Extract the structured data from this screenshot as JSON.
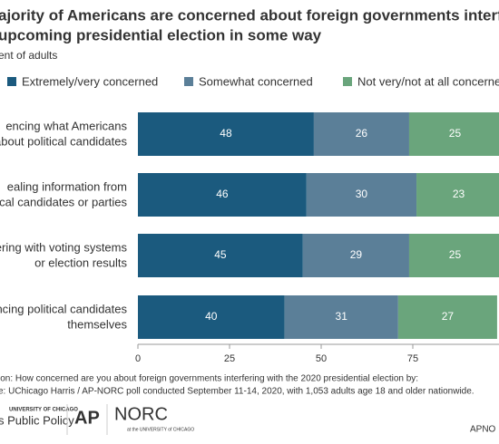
{
  "chart_data": {
    "type": "stacked-bar-horizontal",
    "title": [
      "ajority of Americans are concerned about foreign governments interfering i",
      "upcoming presidential election in some way"
    ],
    "subtitle": "ent of adults",
    "categories": [
      [
        "encing what Americans",
        "about political candidates"
      ],
      [
        "ealing information from",
        "ical candidates or parties"
      ],
      [
        "ering with voting systems",
        "or election results"
      ],
      [
        "ncing political candidates",
        "themselves"
      ]
    ],
    "series": [
      {
        "name": "Extremely/very concerned",
        "color": "#1b5a7e",
        "values": [
          48,
          46,
          45,
          40
        ]
      },
      {
        "name": "Somewhat concerned",
        "color": "#5b7f98",
        "values": [
          26,
          30,
          29,
          31
        ]
      },
      {
        "name": "Not very/not at all concerned",
        "color": "#6aa57c",
        "values": [
          25,
          23,
          25,
          27
        ]
      }
    ],
    "xlim": [
      0,
      100
    ],
    "xticks": [
      0,
      25,
      50,
      75
    ],
    "legend": "top"
  },
  "footer": {
    "question": "ion: How concerned are you about foreign governments interfering with the 2020 presidential election by:",
    "source": "e: UChicago Harris / AP-NORC poll conducted September 11-14, 2020, with 1,053 adults age 18 and older nationwide.",
    "logo1_top": "UNIVERSITY OF CHICAGO",
    "logo1": "s Public Policy",
    "logo2": "AP",
    "logo3": "NORC",
    "logo3_sub": "at the UNIVERSITY of CHICAGO",
    "brand": "APNO"
  }
}
